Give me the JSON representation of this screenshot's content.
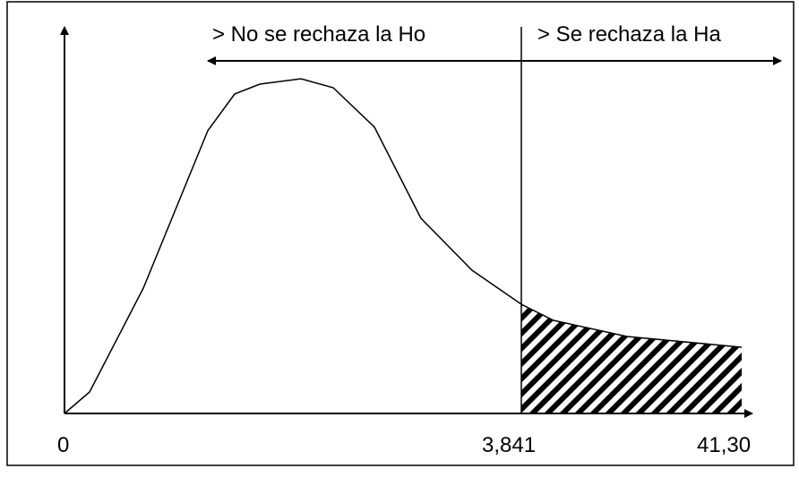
{
  "regions": {
    "left": "> No se rechaza la Ho",
    "right": "> Se rechaza la Ha"
  },
  "axis_labels": {
    "origin": "0",
    "critical": "3,841",
    "statistic": "41,30"
  }
}
